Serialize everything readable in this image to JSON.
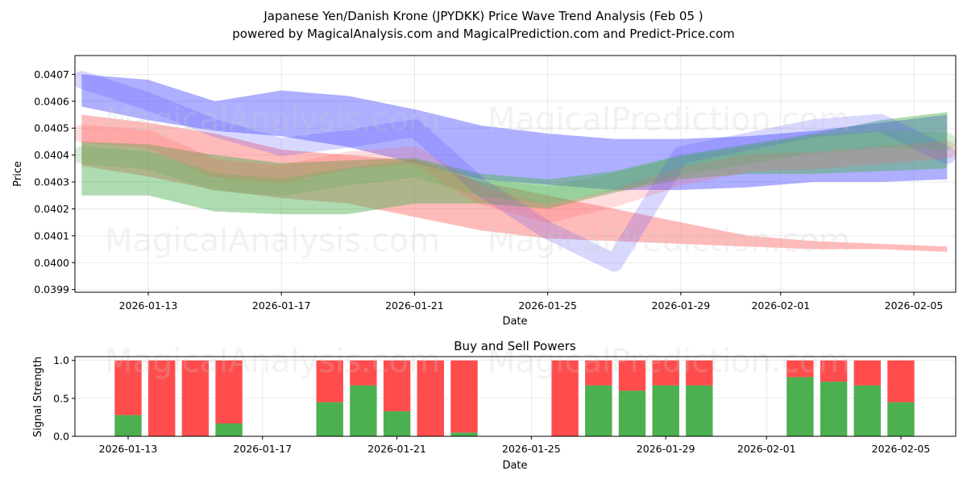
{
  "title_line1": "Japanese Yen/Danish Krone (JPYDKK) Price Wave Trend Analysis (Feb 05 )",
  "title_line2": "powered by MagicalAnalysis.com and MagicalPrediction.com and Predict-Price.com",
  "watermarks": [
    "MagicalAnalysis.com",
    "MagicalPrediction.com"
  ],
  "colors": {
    "blue": "#4d4dff",
    "red": "#ff6666",
    "green": "#4caf50",
    "buy": "#4caf50",
    "sell": "#ff4d4d"
  },
  "chart_data": [
    {
      "type": "area",
      "title": "",
      "xlabel": "Date",
      "ylabel": "Price",
      "ylim": [
        0.03989,
        0.04077
      ],
      "x_tick_labels": [
        "2026-01-13",
        "2026-01-17",
        "2026-01-21",
        "2026-01-25",
        "2026-01-29",
        "2026-02-01",
        "2026-02-05"
      ],
      "y_tick_labels": [
        "0.0399",
        "0.0400",
        "0.0401",
        "0.0402",
        "0.0403",
        "0.0404",
        "0.0405",
        "0.0406",
        "0.0407"
      ],
      "y_ticks": [
        0.0399,
        0.04,
        0.0401,
        0.0402,
        0.0403,
        0.0404,
        0.0405,
        0.0406,
        0.0407
      ],
      "x": [
        "2026-01-11",
        "2026-01-13",
        "2026-01-15",
        "2026-01-17",
        "2026-01-19",
        "2026-01-21",
        "2026-01-23",
        "2026-01-25",
        "2026-01-27",
        "2026-01-29",
        "2026-01-31",
        "2026-02-02",
        "2026-02-04",
        "2026-02-06"
      ],
      "series": [
        {
          "name": "blue wave band",
          "color": "blue",
          "upper": [
            0.0407,
            0.04068,
            0.0406,
            0.04064,
            0.04062,
            0.04057,
            0.04051,
            0.04048,
            0.04046,
            0.04046,
            0.04047,
            0.04049,
            0.04052,
            0.04055
          ],
          "lower": [
            0.04058,
            0.04053,
            0.04049,
            0.04047,
            0.04043,
            0.04037,
            0.04031,
            0.04029,
            0.04027,
            0.04027,
            0.04028,
            0.0403,
            0.0403,
            0.04031
          ]
        },
        {
          "name": "red wave band",
          "color": "red",
          "upper": [
            0.04055,
            0.04052,
            0.04048,
            0.04042,
            0.0404,
            0.04038,
            0.0403,
            0.04025,
            0.0402,
            0.04015,
            0.0401,
            0.04008,
            0.04007,
            0.04006
          ],
          "lower": [
            0.04036,
            0.04032,
            0.04027,
            0.04024,
            0.04022,
            0.04017,
            0.04012,
            0.04009,
            0.04008,
            0.04007,
            0.04006,
            0.04005,
            0.04005,
            0.04004
          ]
        },
        {
          "name": "green wave band",
          "color": "green",
          "upper": [
            0.04045,
            0.04044,
            0.0404,
            0.04037,
            0.04038,
            0.04039,
            0.04033,
            0.04031,
            0.04034,
            0.0404,
            0.04044,
            0.04048,
            0.04053,
            0.04056
          ],
          "lower": [
            0.04025,
            0.04025,
            0.04019,
            0.04018,
            0.04018,
            0.04022,
            0.04022,
            0.0402,
            0.04026,
            0.04031,
            0.04033,
            0.04033,
            0.04034,
            0.04035
          ]
        },
        {
          "name": "blue wave line",
          "color": "blue",
          "values": [
            0.04068,
            0.0406,
            0.0405,
            0.04043,
            0.04046,
            0.0405,
            0.04028,
            0.04012,
            0.04,
            0.0404,
            0.04045,
            0.0405,
            0.04052,
            0.0404
          ]
        },
        {
          "name": "red wave line",
          "color": "red",
          "values": [
            0.04048,
            0.04046,
            0.04035,
            0.04033,
            0.04038,
            0.0404,
            0.04025,
            0.04018,
            0.04024,
            0.04032,
            0.04037,
            0.04038,
            0.0404,
            0.04042
          ]
        },
        {
          "name": "green wave line",
          "color": "green",
          "values": [
            0.0404,
            0.04038,
            0.0403,
            0.04028,
            0.04032,
            0.04035,
            0.04028,
            0.04025,
            0.0403,
            0.04036,
            0.0404,
            0.04044,
            0.04046,
            0.04045
          ]
        }
      ]
    },
    {
      "type": "bar",
      "title": "Buy and Sell Powers",
      "xlabel": "Date",
      "ylabel": "Signal Strength",
      "ylim": [
        0,
        1.05
      ],
      "y_ticks": [
        0.0,
        0.5,
        1.0
      ],
      "y_tick_labels": [
        "0.0",
        "0.5",
        "1.0"
      ],
      "x_tick_labels": [
        "2026-01-13",
        "2026-01-17",
        "2026-01-21",
        "2026-01-25",
        "2026-01-29",
        "2026-02-01",
        "2026-02-05"
      ],
      "categories": [
        "2026-01-13",
        "2026-01-14",
        "2026-01-15",
        "2026-01-16",
        "2026-01-19",
        "2026-01-20",
        "2026-01-21",
        "2026-01-22",
        "2026-01-23",
        "2026-01-26",
        "2026-01-27",
        "2026-01-28",
        "2026-01-29",
        "2026-01-30",
        "2026-02-02",
        "2026-02-03",
        "2026-02-04",
        "2026-02-05"
      ],
      "series": [
        {
          "name": "Buy",
          "color": "buy",
          "values": [
            0.28,
            0.0,
            0.0,
            0.17,
            0.45,
            0.67,
            0.33,
            0.0,
            0.05,
            0.0,
            0.67,
            0.6,
            0.67,
            0.67,
            0.78,
            0.72,
            0.67,
            0.45
          ]
        },
        {
          "name": "Sell",
          "color": "sell",
          "values": [
            0.72,
            1.0,
            1.0,
            0.83,
            0.55,
            0.33,
            0.67,
            1.0,
            0.95,
            1.0,
            0.33,
            0.4,
            0.33,
            0.33,
            0.22,
            0.28,
            0.33,
            0.55
          ]
        }
      ]
    }
  ]
}
